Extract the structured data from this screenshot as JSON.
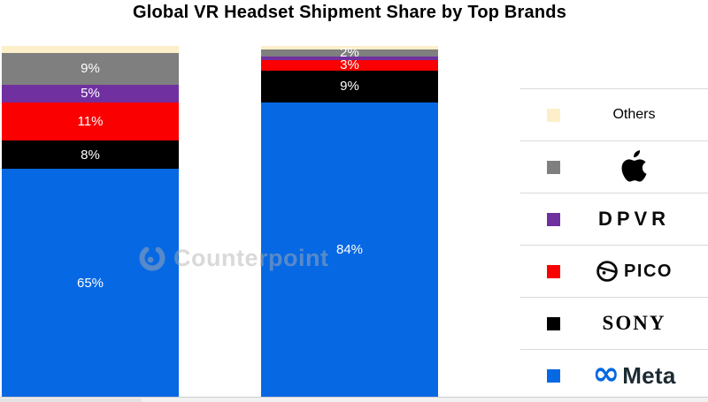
{
  "title": "Global VR Headset Shipment Share by Top Brands",
  "watermark": {
    "text": "Counterpoint",
    "logo_icon": "counterpoint-logo-icon"
  },
  "chart_data": {
    "type": "bar",
    "variant": "100-percent-stacked-column",
    "title": "Global VR Headset Shipment Share by Top Brands",
    "categories": [
      "",
      ""
    ],
    "stack_order_top_to_bottom": [
      "Others",
      "Apple",
      "DPVR",
      "PICO",
      "SONY",
      "Meta"
    ],
    "series": [
      {
        "name": "Others",
        "color": "#FCEFC9",
        "values": [
          2,
          1
        ],
        "labels": [
          "",
          ""
        ]
      },
      {
        "name": "Apple",
        "color": "#7F7F7F",
        "values": [
          9,
          2
        ],
        "labels": [
          "9%",
          "2%"
        ]
      },
      {
        "name": "DPVR",
        "color": "#7030A0",
        "values": [
          5,
          1
        ],
        "labels": [
          "5%",
          ""
        ]
      },
      {
        "name": "PICO",
        "color": "#FA0000",
        "values": [
          11,
          3
        ],
        "labels": [
          "11%",
          "3%"
        ]
      },
      {
        "name": "SONY",
        "color": "#000000",
        "values": [
          8,
          9
        ],
        "labels": [
          "8%",
          "9%"
        ]
      },
      {
        "name": "Meta",
        "color": "#0768E3",
        "values": [
          65,
          84
        ],
        "labels": [
          "65%",
          "84%"
        ]
      }
    ],
    "ylim": [
      0,
      100
    ],
    "grid": false,
    "axes_visible": false,
    "data_label_color": "#ffffff",
    "legend_position": "right"
  },
  "legend": {
    "items": [
      {
        "name": "Others",
        "swatch": "#FCEFC9",
        "logo": "text",
        "label": "Others"
      },
      {
        "name": "Apple",
        "swatch": "#7F7F7F",
        "logo": "apple",
        "label": "Apple"
      },
      {
        "name": "DPVR",
        "swatch": "#7030A0",
        "logo": "dpvr",
        "label": "DPVR"
      },
      {
        "name": "PICO",
        "swatch": "#FA0000",
        "logo": "pico",
        "label": "PICO"
      },
      {
        "name": "SONY",
        "swatch": "#000000",
        "logo": "sony",
        "label": "SONY"
      },
      {
        "name": "Meta",
        "swatch": "#0768E3",
        "logo": "meta",
        "label": "Meta"
      }
    ]
  },
  "colors": {
    "meta_blue": "#0768E3",
    "meta_text": "#1C2B33",
    "divider": "#d9d9d9",
    "scroll_track": "#f1f1f1",
    "watermark_gray": "rgba(175,175,175,0.48)"
  }
}
